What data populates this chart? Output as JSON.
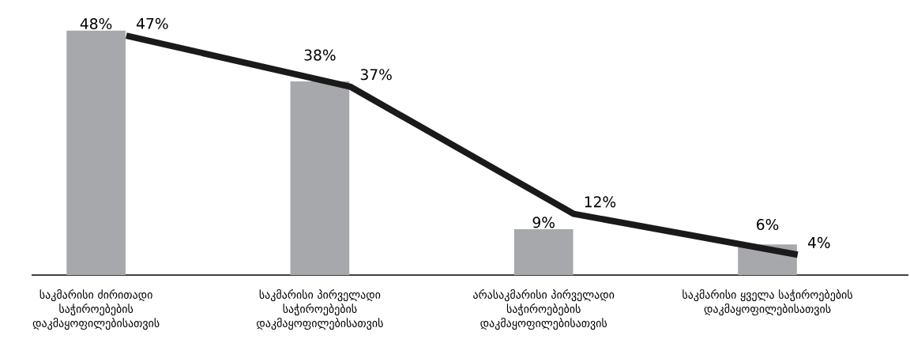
{
  "chart_data": {
    "type": "bar",
    "categories": [
      "საკმარისი ძირითადი საჭიროებების დაკმაყოფილებისათვის",
      "საკმარისი პირველადი საჭიროებების დაკმაყოფილებისათვის",
      "არასაკმარისი პირველადი საჭიროებების დაკმაყოფილებისათვის",
      "საკმარისი ყველა საჭიროებების დაკმაყოფილებისათვის"
    ],
    "series": [
      {
        "color": "#a7a8ab",
        "values": [
          48,
          38,
          9,
          6
        ],
        "value_labels": [
          "48%",
          "38%",
          "9%",
          "6%"
        ]
      },
      {
        "type": "line",
        "color": "#1a1a1a",
        "values": [
          47,
          37,
          12,
          4
        ],
        "value_labels": [
          "47%",
          "37%",
          "12%",
          "4%"
        ]
      }
    ]
  }
}
